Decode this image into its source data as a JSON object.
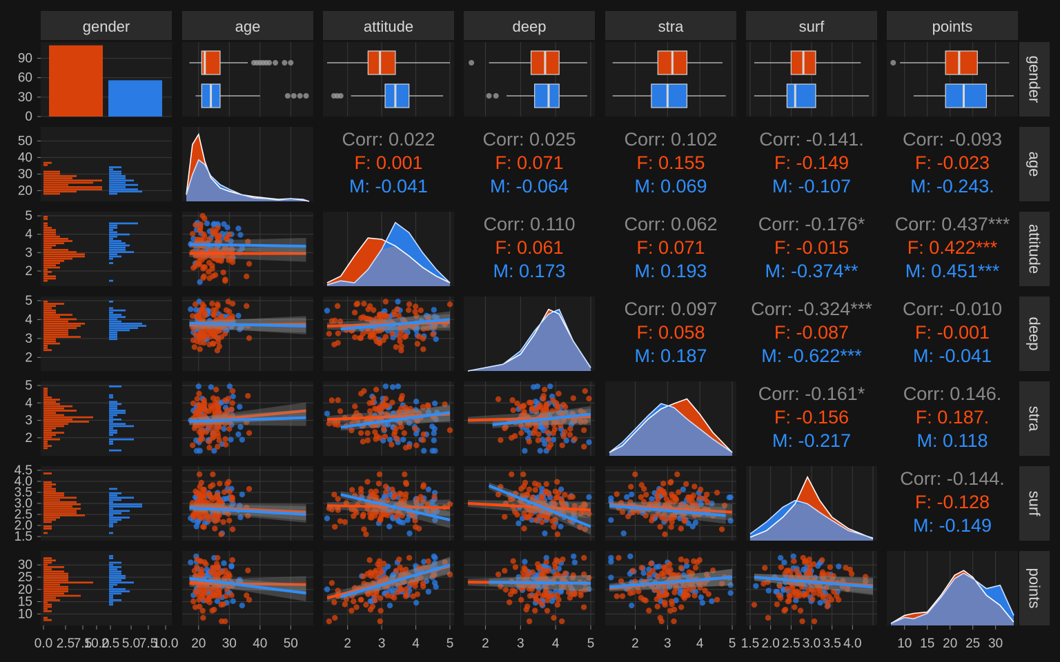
{
  "chart_data": {
    "type": "scatter",
    "variables": [
      "gender",
      "age",
      "attitude",
      "deep",
      "stra",
      "surf",
      "points"
    ],
    "groups": [
      "F",
      "M"
    ],
    "colors": {
      "F": "#d8420a",
      "M": "#2a7be4",
      "corr": "#8a8a8a",
      "F_text": "#ff4b0d",
      "M_text": "#2e8fff",
      "panel": "#1c1c1c",
      "strip": "#2b2b2b",
      "grid": "#3a3a3a"
    },
    "strip_labels": [
      "gender",
      "age",
      "attitude",
      "deep",
      "stra",
      "surf",
      "points"
    ],
    "row_strip_labels": [
      "gender",
      "age",
      "attitude",
      "deep",
      "stra",
      "surf",
      "points"
    ],
    "x_ticks": {
      "gender": [
        "0.0",
        "2.5",
        "7.5",
        "10.0",
        "2.5",
        "5.0",
        "7.5",
        "10.0"
      ],
      "age": [
        "20",
        "30",
        "40",
        "50"
      ],
      "attitude": [
        "2",
        "3",
        "4",
        "5"
      ],
      "deep": [
        "2",
        "3",
        "4",
        "5"
      ],
      "stra": [
        "2",
        "3",
        "4",
        "5"
      ],
      "surf": [
        "1.5",
        "2.0",
        "2.5",
        "3.0",
        "3.5",
        "4.0"
      ],
      "points": [
        "10",
        "15",
        "20",
        "25",
        "30"
      ]
    },
    "y_ticks": {
      "gender": [
        "0",
        "30",
        "60",
        "90"
      ],
      "age": [
        "20",
        "30",
        "40",
        "50"
      ],
      "attitude": [
        "2",
        "3",
        "4",
        "5"
      ],
      "deep": [
        "2",
        "3",
        "4",
        "5"
      ],
      "stra": [
        "2",
        "3",
        "4",
        "5"
      ],
      "surf": [
        "1.5",
        "2.0",
        "2.5",
        "3.0",
        "3.5",
        "4.0",
        "4.5"
      ],
      "points": [
        "10",
        "15",
        "20",
        "25",
        "30"
      ]
    },
    "ranges": {
      "age": [
        16,
        56
      ],
      "attitude": [
        1.4,
        5.0
      ],
      "deep": [
        1.5,
        5.0
      ],
      "stra": [
        1.2,
        5.0
      ],
      "surf": [
        1.5,
        4.5
      ],
      "points": [
        7,
        34
      ]
    },
    "gender_counts": {
      "F": 110,
      "M": 56
    },
    "gender_ylim": [
      0,
      115
    ],
    "boxplots": {
      "age": {
        "F": [
          17,
          21,
          22,
          27,
          36
        ],
        "M": [
          19,
          21,
          24,
          27,
          40
        ]
      },
      "attitude": {
        "F": [
          1.4,
          2.6,
          2.95,
          3.4,
          5.0
        ],
        "M": [
          2.1,
          3.1,
          3.4,
          3.8,
          4.8
        ]
      },
      "deep": {
        "F": [
          2.1,
          3.3,
          3.7,
          4.1,
          4.9
        ],
        "M": [
          2.6,
          3.4,
          3.8,
          4.1,
          4.9
        ]
      },
      "stra": {
        "F": [
          1.3,
          2.7,
          3.15,
          3.6,
          4.7
        ],
        "M": [
          1.3,
          2.5,
          3.0,
          3.6,
          4.8
        ]
      },
      "surf": {
        "F": [
          1.6,
          2.5,
          2.8,
          3.1,
          4.2
        ],
        "M": [
          1.6,
          2.4,
          2.6,
          3.1,
          4.4
        ]
      },
      "points": {
        "F": [
          9,
          19,
          22,
          26,
          33
        ],
        "M": [
          12,
          19,
          23,
          28,
          34
        ]
      }
    },
    "box_outliers": {
      "age": {
        "F": [
          38,
          39,
          40,
          41,
          42,
          43,
          45,
          48,
          50
        ],
        "M": [
          49,
          51,
          53,
          55
        ]
      },
      "attitude": {
        "F": [],
        "M": [
          1.6,
          1.7,
          1.8
        ]
      },
      "deep": {
        "F": [
          1.6
        ],
        "M": [
          2.1,
          2.3
        ]
      },
      "stra": {
        "F": [],
        "M": []
      },
      "surf": {
        "F": [],
        "M": []
      },
      "points": {
        "F": [
          7.5
        ],
        "M": []
      }
    },
    "correlations": [
      {
        "row": "age",
        "col": "attitude",
        "corr": "Corr: 0.022",
        "F": "F: 0.001",
        "M": "M: -0.041"
      },
      {
        "row": "age",
        "col": "deep",
        "corr": "Corr: 0.025",
        "F": "F: 0.071",
        "M": "M: -0.064"
      },
      {
        "row": "age",
        "col": "stra",
        "corr": "Corr: 0.102",
        "F": "F: 0.155",
        "M": "M: 0.069"
      },
      {
        "row": "age",
        "col": "surf",
        "corr": "Corr: -0.141.",
        "F": "F: -0.149",
        "M": "M: -0.107"
      },
      {
        "row": "age",
        "col": "points",
        "corr": "Corr: -0.093",
        "F": "F: -0.023",
        "M": "M: -0.243."
      },
      {
        "row": "attitude",
        "col": "deep",
        "corr": "Corr: 0.110",
        "F": "F: 0.061",
        "M": "M: 0.173"
      },
      {
        "row": "attitude",
        "col": "stra",
        "corr": "Corr: 0.062",
        "F": "F: 0.071",
        "M": "M: 0.193"
      },
      {
        "row": "attitude",
        "col": "surf",
        "corr": "Corr: -0.176*",
        "F": "F: -0.015",
        "M": "M: -0.374**"
      },
      {
        "row": "attitude",
        "col": "points",
        "corr": "Corr: 0.437***",
        "F": "F: 0.422***",
        "M": "M: 0.451***"
      },
      {
        "row": "deep",
        "col": "stra",
        "corr": "Corr: 0.097",
        "F": "F: 0.058",
        "M": "M: 0.187"
      },
      {
        "row": "deep",
        "col": "surf",
        "corr": "Corr: -0.324***",
        "F": "F: -0.087",
        "M": "M: -0.622***"
      },
      {
        "row": "deep",
        "col": "points",
        "corr": "Corr: -0.010",
        "F": "F: -0.001",
        "M": "M: -0.041"
      },
      {
        "row": "stra",
        "col": "surf",
        "corr": "Corr: -0.161*",
        "F": "F: -0.156",
        "M": "M: -0.217"
      },
      {
        "row": "stra",
        "col": "points",
        "corr": "Corr: 0.146.",
        "F": "F: 0.187.",
        "M": "M: 0.118"
      },
      {
        "row": "surf",
        "col": "points",
        "corr": "Corr: -0.144.",
        "F": "F: -0.128",
        "M": "M: -0.149"
      }
    ],
    "regression_lines": {
      "age|attitude": {
        "F": [
          [
            17,
            2.95
          ],
          [
            55,
            2.95
          ]
        ],
        "M": [
          [
            17,
            3.45
          ],
          [
            55,
            3.35
          ]
        ]
      },
      "age|deep": {
        "F": [
          [
            17,
            3.7
          ],
          [
            55,
            3.75
          ]
        ],
        "M": [
          [
            17,
            3.8
          ],
          [
            55,
            3.65
          ]
        ]
      },
      "age|stra": {
        "F": [
          [
            17,
            2.9
          ],
          [
            55,
            3.55
          ]
        ],
        "M": [
          [
            17,
            2.95
          ],
          [
            55,
            3.15
          ]
        ]
      },
      "age|surf": {
        "F": [
          [
            17,
            2.85
          ],
          [
            55,
            2.6
          ]
        ],
        "M": [
          [
            17,
            2.8
          ],
          [
            55,
            2.5
          ]
        ]
      },
      "age|points": {
        "F": [
          [
            17,
            22.5
          ],
          [
            55,
            22
          ]
        ],
        "M": [
          [
            17,
            24.5
          ],
          [
            55,
            18.5
          ]
        ]
      },
      "attitude|deep": {
        "F": [
          [
            1.4,
            3.65
          ],
          [
            5.0,
            3.85
          ]
        ],
        "M": [
          [
            1.8,
            3.5
          ],
          [
            5.0,
            4.0
          ]
        ]
      },
      "attitude|stra": {
        "F": [
          [
            1.4,
            3.05
          ],
          [
            5.0,
            3.35
          ]
        ],
        "M": [
          [
            1.8,
            2.6
          ],
          [
            5.0,
            3.45
          ]
        ]
      },
      "attitude|surf": {
        "F": [
          [
            1.4,
            2.9
          ],
          [
            5.0,
            2.8
          ]
        ],
        "M": [
          [
            1.8,
            3.4
          ],
          [
            5.0,
            2.25
          ]
        ]
      },
      "attitude|points": {
        "F": [
          [
            1.4,
            16.5
          ],
          [
            5.0,
            29.5
          ]
        ],
        "M": [
          [
            1.8,
            17
          ],
          [
            5.0,
            30
          ]
        ]
      },
      "deep|stra": {
        "F": [
          [
            1.5,
            3.0
          ],
          [
            5.0,
            3.2
          ]
        ],
        "M": [
          [
            2.2,
            2.75
          ],
          [
            5.0,
            3.35
          ]
        ]
      },
      "deep|surf": {
        "F": [
          [
            1.5,
            3.0
          ],
          [
            5.0,
            2.7
          ]
        ],
        "M": [
          [
            2.1,
            3.8
          ],
          [
            5.0,
            1.95
          ]
        ]
      },
      "deep|points": {
        "F": [
          [
            1.5,
            23
          ],
          [
            5.0,
            22.5
          ]
        ],
        "M": [
          [
            2.1,
            23
          ],
          [
            5.0,
            22.5
          ]
        ]
      },
      "stra|surf": {
        "F": [
          [
            1.2,
            2.95
          ],
          [
            5.0,
            2.6
          ]
        ],
        "M": [
          [
            1.2,
            2.9
          ],
          [
            4.8,
            2.45
          ]
        ]
      },
      "stra|points": {
        "F": [
          [
            1.2,
            20.5
          ],
          [
            5.0,
            25
          ]
        ],
        "M": [
          [
            1.2,
            21
          ],
          [
            5.0,
            25
          ]
        ]
      },
      "surf|points": {
        "F": [
          [
            1.6,
            25
          ],
          [
            4.5,
            21.5
          ]
        ],
        "M": [
          [
            1.6,
            25
          ],
          [
            4.5,
            21
          ]
        ]
      }
    },
    "density": {
      "age": {
        "F": [
          [
            16,
            0.1
          ],
          [
            18,
            0.85
          ],
          [
            20,
            1.0
          ],
          [
            22,
            0.6
          ],
          [
            24,
            0.35
          ],
          [
            27,
            0.2
          ],
          [
            30,
            0.15
          ],
          [
            34,
            0.1
          ],
          [
            38,
            0.07
          ],
          [
            42,
            0.05
          ],
          [
            46,
            0.03
          ],
          [
            50,
            0.04
          ],
          [
            54,
            0.02
          ],
          [
            56,
            0.0
          ]
        ],
        "M": [
          [
            16,
            0.1
          ],
          [
            18,
            0.4
          ],
          [
            20,
            0.62
          ],
          [
            22,
            0.55
          ],
          [
            24,
            0.38
          ],
          [
            27,
            0.25
          ],
          [
            30,
            0.18
          ],
          [
            34,
            0.1
          ],
          [
            38,
            0.05
          ],
          [
            42,
            0.04
          ],
          [
            46,
            0.02
          ],
          [
            50,
            0.04
          ],
          [
            54,
            0.03
          ],
          [
            56,
            0.0
          ]
        ]
      },
      "attitude": {
        "F": [
          [
            1.4,
            0.05
          ],
          [
            1.8,
            0.15
          ],
          [
            2.2,
            0.45
          ],
          [
            2.6,
            0.72
          ],
          [
            3.0,
            0.7
          ],
          [
            3.4,
            0.6
          ],
          [
            3.8,
            0.45
          ],
          [
            4.2,
            0.28
          ],
          [
            4.6,
            0.15
          ],
          [
            5.0,
            0.05
          ]
        ],
        "M": [
          [
            1.4,
            0.02
          ],
          [
            1.8,
            0.08
          ],
          [
            2.2,
            0.05
          ],
          [
            2.6,
            0.25
          ],
          [
            3.0,
            0.55
          ],
          [
            3.4,
            0.95
          ],
          [
            3.8,
            0.8
          ],
          [
            4.2,
            0.5
          ],
          [
            4.6,
            0.25
          ],
          [
            5.0,
            0.05
          ]
        ]
      },
      "deep": {
        "F": [
          [
            1.5,
            0.0
          ],
          [
            2.0,
            0.05
          ],
          [
            2.5,
            0.1
          ],
          [
            3.0,
            0.25
          ],
          [
            3.4,
            0.55
          ],
          [
            3.8,
            0.92
          ],
          [
            4.1,
            0.85
          ],
          [
            4.5,
            0.45
          ],
          [
            5.0,
            0.05
          ]
        ],
        "M": [
          [
            1.5,
            0.0
          ],
          [
            2.0,
            0.05
          ],
          [
            2.5,
            0.1
          ],
          [
            3.0,
            0.3
          ],
          [
            3.4,
            0.6
          ],
          [
            3.8,
            0.85
          ],
          [
            4.1,
            0.92
          ],
          [
            4.5,
            0.45
          ],
          [
            5.0,
            0.05
          ]
        ]
      },
      "stra": {
        "F": [
          [
            1.2,
            0.05
          ],
          [
            1.6,
            0.15
          ],
          [
            2.0,
            0.35
          ],
          [
            2.4,
            0.55
          ],
          [
            2.8,
            0.7
          ],
          [
            3.2,
            0.78
          ],
          [
            3.6,
            0.85
          ],
          [
            4.0,
            0.62
          ],
          [
            4.4,
            0.35
          ],
          [
            5.0,
            0.05
          ]
        ],
        "M": [
          [
            1.2,
            0.05
          ],
          [
            1.6,
            0.2
          ],
          [
            2.0,
            0.4
          ],
          [
            2.4,
            0.6
          ],
          [
            2.8,
            0.78
          ],
          [
            3.2,
            0.72
          ],
          [
            3.6,
            0.55
          ],
          [
            4.0,
            0.4
          ],
          [
            4.4,
            0.25
          ],
          [
            5.0,
            0.05
          ]
        ]
      },
      "surf": {
        "F": [
          [
            1.5,
            0.05
          ],
          [
            1.9,
            0.15
          ],
          [
            2.3,
            0.35
          ],
          [
            2.6,
            0.55
          ],
          [
            2.9,
            0.95
          ],
          [
            3.2,
            0.6
          ],
          [
            3.5,
            0.35
          ],
          [
            3.9,
            0.18
          ],
          [
            4.5,
            0.03
          ]
        ],
        "M": [
          [
            1.5,
            0.1
          ],
          [
            1.9,
            0.28
          ],
          [
            2.3,
            0.5
          ],
          [
            2.6,
            0.6
          ],
          [
            2.9,
            0.55
          ],
          [
            3.2,
            0.42
          ],
          [
            3.5,
            0.3
          ],
          [
            3.9,
            0.15
          ],
          [
            4.5,
            0.04
          ]
        ]
      },
      "points": {
        "F": [
          [
            7,
            0.03
          ],
          [
            10,
            0.15
          ],
          [
            12,
            0.18
          ],
          [
            15,
            0.2
          ],
          [
            18,
            0.45
          ],
          [
            21,
            0.75
          ],
          [
            23,
            0.82
          ],
          [
            25,
            0.72
          ],
          [
            28,
            0.45
          ],
          [
            31,
            0.3
          ],
          [
            34,
            0.05
          ]
        ],
        "M": [
          [
            7,
            0.03
          ],
          [
            10,
            0.12
          ],
          [
            12,
            0.1
          ],
          [
            15,
            0.18
          ],
          [
            18,
            0.42
          ],
          [
            21,
            0.7
          ],
          [
            23,
            0.78
          ],
          [
            25,
            0.7
          ],
          [
            28,
            0.55
          ],
          [
            31,
            0.6
          ],
          [
            34,
            0.15
          ]
        ]
      }
    }
  }
}
